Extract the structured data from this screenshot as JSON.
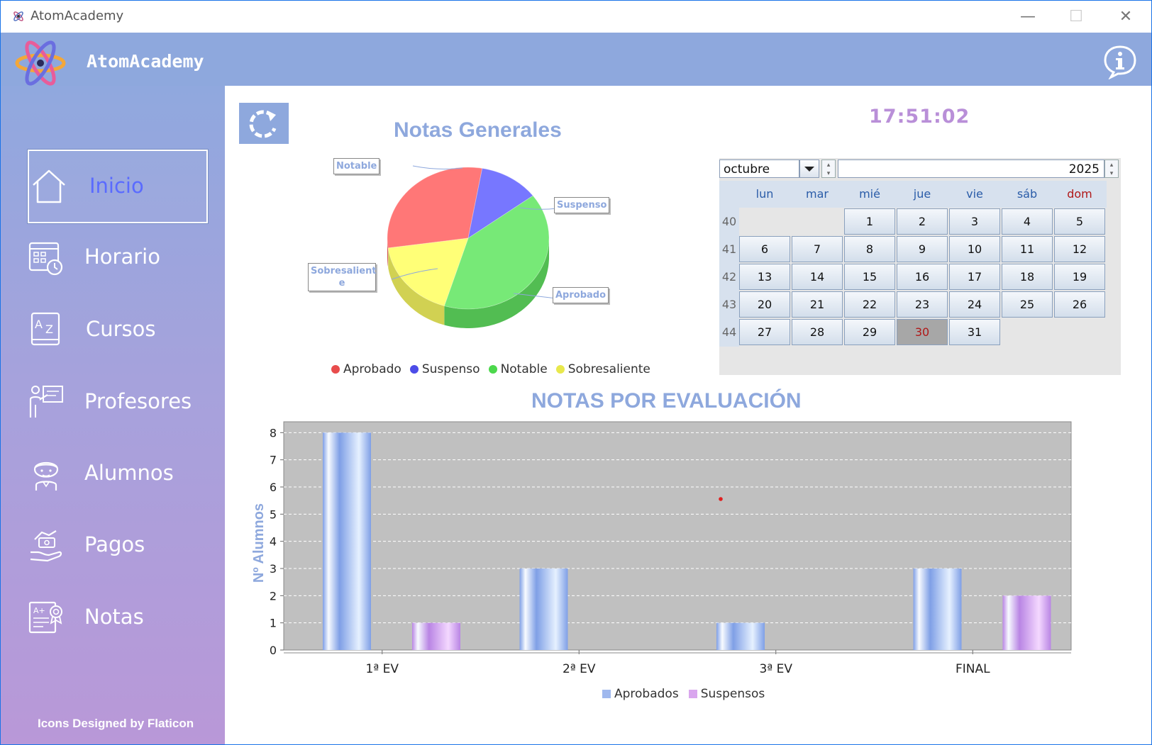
{
  "window": {
    "title": "AtomAcademy",
    "controls": {
      "minimize": "—",
      "maximize": "☐",
      "close": "✕"
    }
  },
  "header": {
    "brand": "AtomAcademy",
    "info_icon": "info-icon"
  },
  "sidebar": {
    "items": [
      {
        "label": "Inicio",
        "icon": "home-icon",
        "active": true
      },
      {
        "label": "Horario",
        "icon": "calendar-clock-icon",
        "active": false
      },
      {
        "label": "Cursos",
        "icon": "book-az-icon",
        "active": false
      },
      {
        "label": "Profesores",
        "icon": "teacher-icon",
        "active": false
      },
      {
        "label": "Alumnos",
        "icon": "student-icon",
        "active": false
      },
      {
        "label": "Pagos",
        "icon": "payment-hand-icon",
        "active": false
      },
      {
        "label": "Notas",
        "icon": "grade-certificate-icon",
        "active": false
      }
    ],
    "credits": "Icons Designed by Flaticon"
  },
  "main": {
    "refresh_icon": "refresh-icon",
    "clock": "17:51:02",
    "pie_title": "Notas Generales",
    "pie_labels": {
      "notable": "Notable",
      "suspenso": "Suspenso",
      "sobresaliente": "Sobresalient\ne",
      "aprobado": "Aprobado"
    },
    "pie_legend": [
      "Aprobado",
      "Suspenso",
      "Notable",
      "Sobresaliente"
    ],
    "bar_title": "NOTAS POR EVALUACIÓN",
    "bar_legend": [
      "Aprobados",
      "Suspensos"
    ]
  },
  "calendar": {
    "month": "octubre",
    "year": "2025",
    "weekdays": [
      "lun",
      "mar",
      "mié",
      "jue",
      "vie",
      "sáb",
      "dom"
    ],
    "weeks": [
      {
        "num": "40",
        "days": [
          "",
          "",
          "1",
          "2",
          "3",
          "4",
          "5"
        ]
      },
      {
        "num": "41",
        "days": [
          "6",
          "7",
          "8",
          "9",
          "10",
          "11",
          "12"
        ]
      },
      {
        "num": "42",
        "days": [
          "13",
          "14",
          "15",
          "16",
          "17",
          "18",
          "19"
        ]
      },
      {
        "num": "43",
        "days": [
          "20",
          "21",
          "22",
          "23",
          "24",
          "25",
          "26"
        ]
      },
      {
        "num": "44",
        "days": [
          "27",
          "28",
          "29",
          "30",
          "31",
          "",
          ""
        ]
      }
    ],
    "today": "30"
  },
  "chart_data": [
    {
      "type": "pie",
      "title": "Notas Generales",
      "categories": [
        "Aprobado",
        "Suspenso",
        "Notable",
        "Sobresaliente"
      ],
      "values": [
        30,
        12,
        40,
        18
      ],
      "colors": [
        "#ff6464",
        "#6464ff",
        "#64e664",
        "#ffff64"
      ],
      "legend": "bottom"
    },
    {
      "type": "bar",
      "title": "NOTAS POR EVALUACIÓN",
      "categories": [
        "1ª EV",
        "2ª EV",
        "3ª EV",
        "FINAL"
      ],
      "series": [
        {
          "name": "Aprobados",
          "values": [
            8,
            3,
            1,
            3
          ],
          "color": "#9fb8ee"
        },
        {
          "name": "Suspensos",
          "values": [
            1,
            0,
            0,
            2
          ],
          "color": "#d9a6ee"
        }
      ],
      "ylabel": "Nº Alumnos",
      "xlabel": "",
      "ylim": [
        0,
        8.4
      ],
      "yticks": [
        "0",
        "1",
        "2",
        "3",
        "4",
        "5",
        "6",
        "7",
        "8"
      ],
      "grid": true,
      "legend": "bottom"
    }
  ]
}
